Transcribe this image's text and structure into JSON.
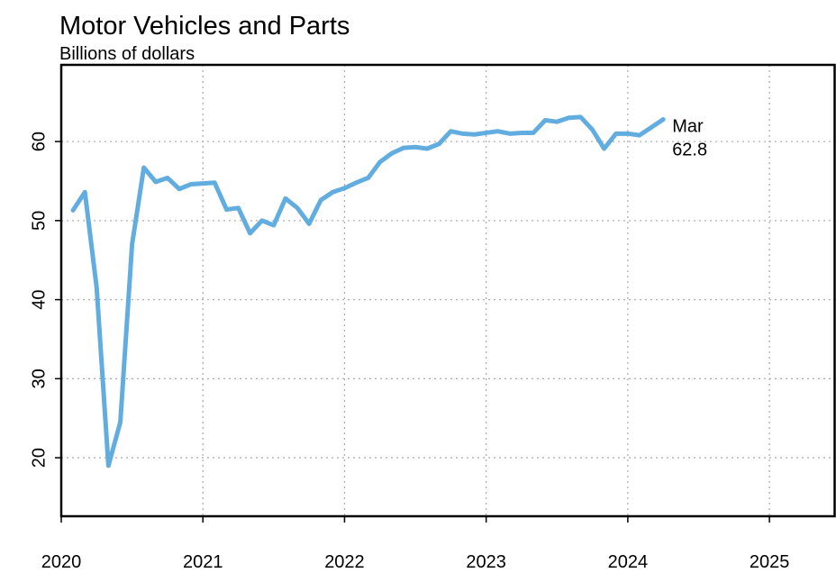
{
  "chart_data": {
    "type": "line",
    "title": "Motor Vehicles and Parts",
    "subtitle": "Billions of dollars",
    "x": [
      2020.083,
      2020.167,
      2020.25,
      2020.333,
      2020.417,
      2020.5,
      2020.583,
      2020.667,
      2020.75,
      2020.833,
      2020.917,
      2021.0,
      2021.083,
      2021.167,
      2021.25,
      2021.333,
      2021.417,
      2021.5,
      2021.583,
      2021.667,
      2021.75,
      2021.833,
      2021.917,
      2022.0,
      2022.083,
      2022.167,
      2022.25,
      2022.333,
      2022.417,
      2022.5,
      2022.583,
      2022.667,
      2022.75,
      2022.833,
      2022.917,
      2023.0,
      2023.083,
      2023.167,
      2023.25,
      2023.333,
      2023.417,
      2023.5,
      2023.583,
      2023.667,
      2023.75,
      2023.833,
      2023.917,
      2024.0,
      2024.083,
      2024.167,
      2024.25
    ],
    "series": [
      {
        "name": "Motor Vehicles and Parts",
        "color": "#62addf",
        "values": [
          51.3,
          53.6,
          41.5,
          19.0,
          24.5,
          47.0,
          56.7,
          54.9,
          55.4,
          54.0,
          54.6,
          54.7,
          54.8,
          51.4,
          51.6,
          48.4,
          50.0,
          49.4,
          52.8,
          51.6,
          49.6,
          52.6,
          53.6,
          54.1,
          54.8,
          55.4,
          57.4,
          58.5,
          59.2,
          59.3,
          59.1,
          59.7,
          61.3,
          61.0,
          60.9,
          61.1,
          61.3,
          61.0,
          61.1,
          61.1,
          62.7,
          62.5,
          63.0,
          63.1,
          61.5,
          59.1,
          61.0,
          61.0,
          60.8,
          61.8,
          62.8
        ]
      }
    ],
    "annotations": [
      "Mar",
      "62.8"
    ],
    "xlim": [
      2020,
      2025.47
    ],
    "xticks": [
      2020,
      2021,
      2022,
      2023,
      2024,
      2025
    ],
    "ylim": [
      12.6,
      69.7
    ],
    "yticks": [
      20,
      30,
      40,
      50,
      60
    ],
    "grid": true
  }
}
